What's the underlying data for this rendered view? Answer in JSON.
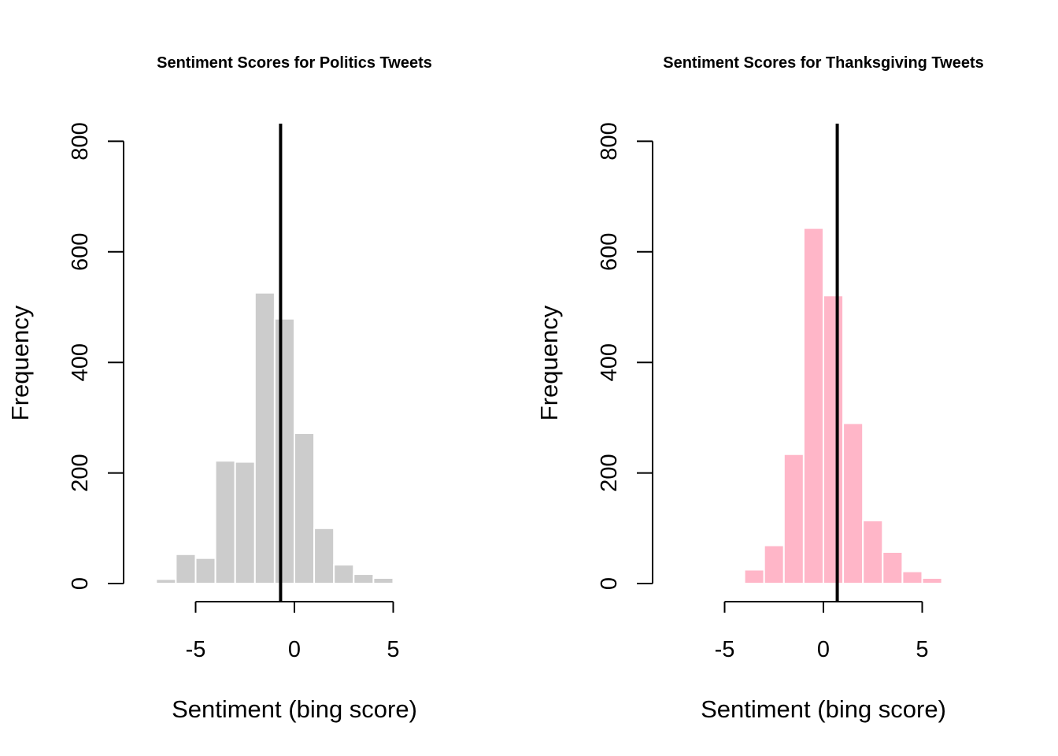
{
  "chart_data": [
    {
      "type": "bar",
      "title": "Sentiment Scores for Politics Tweets",
      "xlabel": "Sentiment (bing score)",
      "ylabel": "Frequency",
      "xlim": [
        -8.5,
        7
      ],
      "ylim": [
        0,
        830
      ],
      "xticks": [
        -5,
        0,
        5
      ],
      "yticks": [
        0,
        200,
        400,
        600,
        800
      ],
      "bar_color": "#cccccc",
      "bins": [
        {
          "start": -7,
          "end": -6,
          "count": 8
        },
        {
          "start": -6,
          "end": -5,
          "count": 53
        },
        {
          "start": -5,
          "end": -4,
          "count": 46
        },
        {
          "start": -4,
          "end": -3,
          "count": 222
        },
        {
          "start": -3,
          "end": -2,
          "count": 220
        },
        {
          "start": -2,
          "end": -1,
          "count": 526
        },
        {
          "start": -1,
          "end": 0,
          "count": 479
        },
        {
          "start": 0,
          "end": 1,
          "count": 272
        },
        {
          "start": 1,
          "end": 2,
          "count": 100
        },
        {
          "start": 2,
          "end": 3,
          "count": 34
        },
        {
          "start": 3,
          "end": 4,
          "count": 17
        },
        {
          "start": 4,
          "end": 5,
          "count": 10
        }
      ],
      "mean_line": -0.7
    },
    {
      "type": "bar",
      "title": "Sentiment Scores for Thanksgiving Tweets",
      "xlabel": "Sentiment (bing score)",
      "ylabel": "Frequency",
      "xlim": [
        -8.5,
        7
      ],
      "ylim": [
        0,
        830
      ],
      "xticks": [
        -5,
        0,
        5
      ],
      "yticks": [
        0,
        200,
        400,
        600,
        800
      ],
      "bar_color": "#ffb6c8",
      "bins": [
        {
          "start": -5,
          "end": -4,
          "count": 2
        },
        {
          "start": -4,
          "end": -3,
          "count": 25
        },
        {
          "start": -3,
          "end": -2,
          "count": 69
        },
        {
          "start": -2,
          "end": -1,
          "count": 234
        },
        {
          "start": -1,
          "end": 0,
          "count": 643
        },
        {
          "start": 0,
          "end": 1,
          "count": 521
        },
        {
          "start": 1,
          "end": 2,
          "count": 290
        },
        {
          "start": 2,
          "end": 3,
          "count": 114
        },
        {
          "start": 3,
          "end": 4,
          "count": 57
        },
        {
          "start": 4,
          "end": 5,
          "count": 22
        },
        {
          "start": 5,
          "end": 6,
          "count": 10
        }
      ],
      "mean_line": 0.7
    }
  ]
}
